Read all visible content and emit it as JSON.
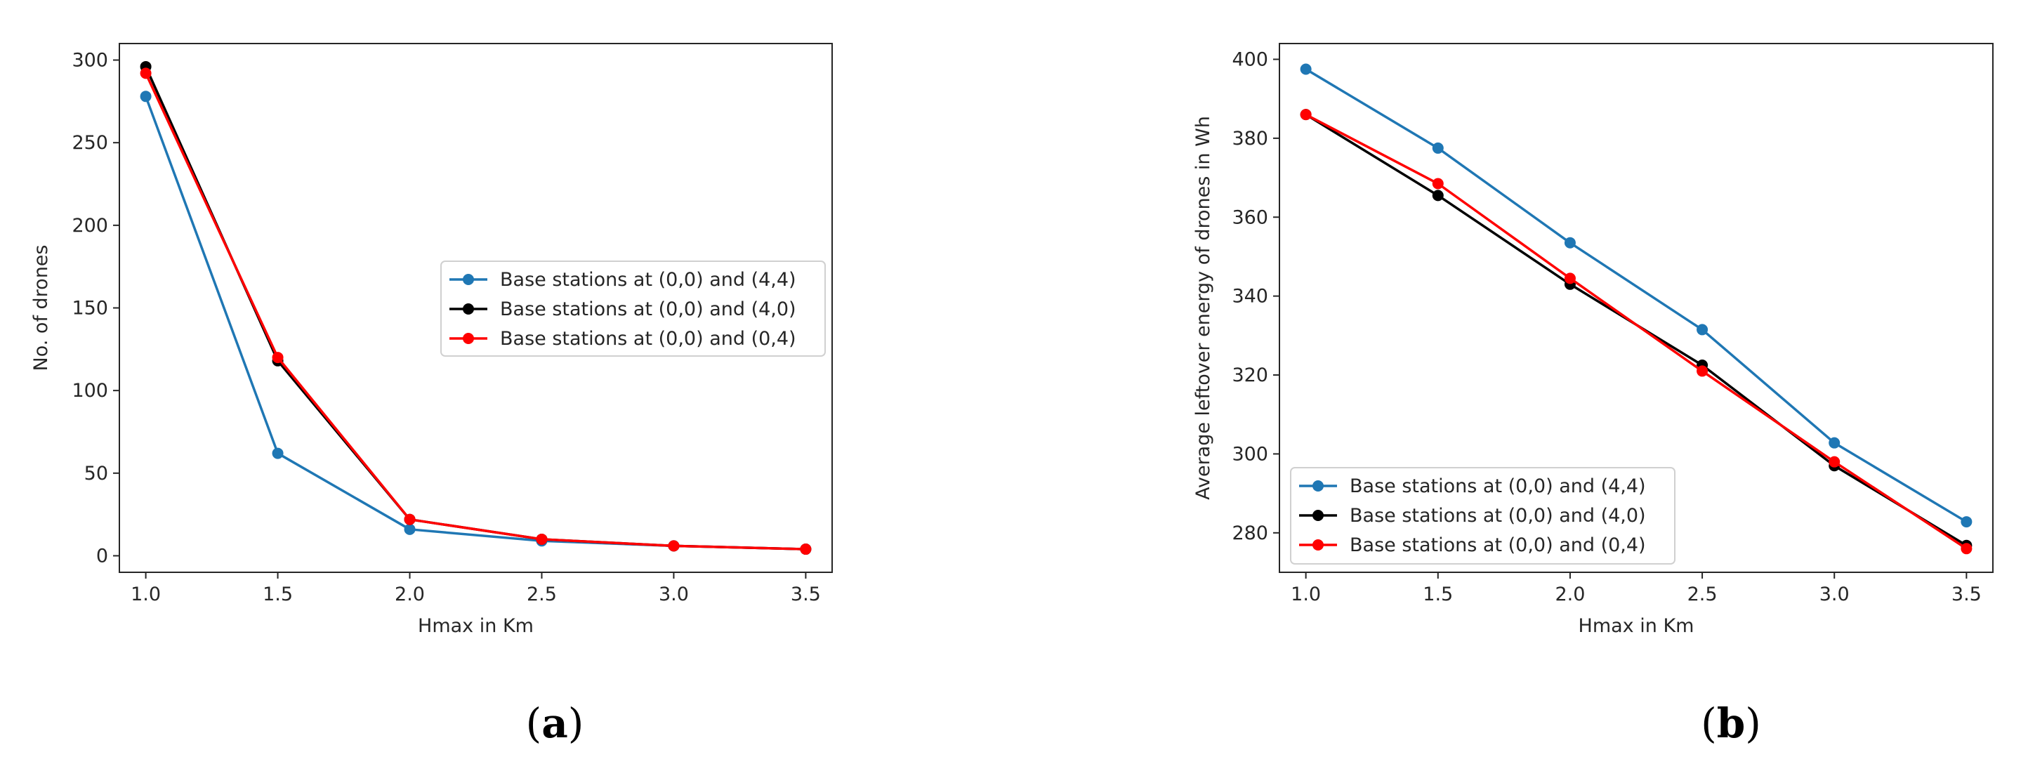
{
  "colors": {
    "blue": "#1f77b4",
    "black": "#000000",
    "red": "#ff0000",
    "axis": "#262626"
  },
  "chart_data": [
    {
      "type": "line",
      "caption": {
        "open": "(",
        "letter": "a",
        "close": ")"
      },
      "xlabel": "Hmax in Km",
      "ylabel": "No. of drones",
      "xlim": [
        0.9,
        3.6
      ],
      "ylim": [
        -10,
        310
      ],
      "xticks": [
        1.0,
        1.5,
        2.0,
        2.5,
        3.0,
        3.5
      ],
      "xtick_labels": [
        "1.0",
        "1.5",
        "2.0",
        "2.5",
        "3.0",
        "3.5"
      ],
      "yticks": [
        0,
        50,
        100,
        150,
        200,
        250,
        300
      ],
      "ytick_labels": [
        "0",
        "50",
        "100",
        "150",
        "200",
        "250",
        "300"
      ],
      "x": [
        1.0,
        1.5,
        2.0,
        2.5,
        3.0,
        3.5
      ],
      "legend_position": "center-right",
      "series": [
        {
          "name": "Base stations at (0,0) and (4,4)",
          "color": "#1f77b4",
          "values": [
            278,
            62,
            16,
            9,
            6,
            4
          ]
        },
        {
          "name": "Base stations at (0,0) and (4,0)",
          "color": "#000000",
          "values": [
            296,
            118,
            22,
            10,
            6,
            4
          ]
        },
        {
          "name": "Base stations at (0,0) and (0,4)",
          "color": "#ff0000",
          "values": [
            292,
            120,
            22,
            10,
            6,
            4
          ]
        }
      ]
    },
    {
      "type": "line",
      "caption": {
        "open": "(",
        "letter": "b",
        "close": ")"
      },
      "xlabel": "Hmax in Km",
      "ylabel": "Average leftover energy of drones in Wh",
      "xlim": [
        0.9,
        3.6
      ],
      "ylim": [
        270,
        404
      ],
      "xticks": [
        1.0,
        1.5,
        2.0,
        2.5,
        3.0,
        3.5
      ],
      "xtick_labels": [
        "1.0",
        "1.5",
        "2.0",
        "2.5",
        "3.0",
        "3.5"
      ],
      "yticks": [
        280,
        300,
        320,
        340,
        360,
        380,
        400
      ],
      "ytick_labels": [
        "280",
        "300",
        "320",
        "340",
        "360",
        "380",
        "400"
      ],
      "x": [
        1.0,
        1.5,
        2.0,
        2.5,
        3.0,
        3.5
      ],
      "legend_position": "lower-left",
      "series": [
        {
          "name": "Base stations at (0,0) and (4,4)",
          "color": "#1f77b4",
          "values": [
            397.5,
            377.5,
            353.5,
            331.5,
            302.8,
            282.8
          ]
        },
        {
          "name": "Base stations at (0,0) and (4,0)",
          "color": "#000000",
          "values": [
            386.0,
            365.5,
            343.0,
            322.5,
            297.0,
            276.8
          ]
        },
        {
          "name": "Base stations at (0,0) and (0,4)",
          "color": "#ff0000",
          "values": [
            386.0,
            368.5,
            344.5,
            321.0,
            298.0,
            276.0
          ]
        }
      ]
    }
  ]
}
